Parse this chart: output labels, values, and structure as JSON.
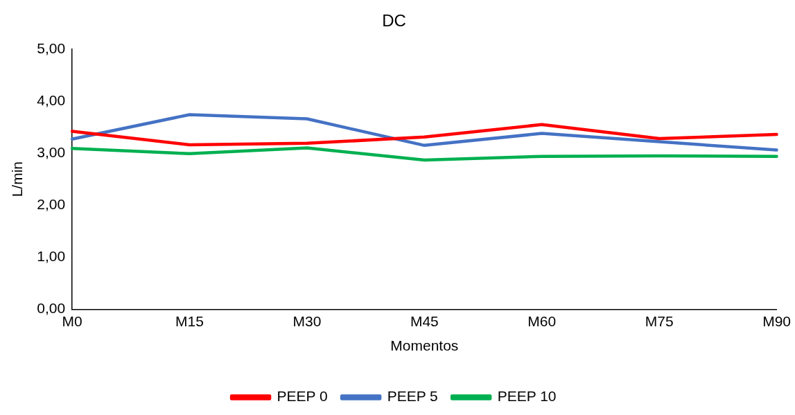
{
  "chart_data": {
    "type": "line",
    "title": "DC",
    "xlabel": "Momentos",
    "ylabel": "L/min",
    "categories": [
      "M0",
      "M15",
      "M30",
      "M45",
      "M60",
      "M75",
      "M90"
    ],
    "series": [
      {
        "name": "PEEP 0",
        "color": "#ff0000",
        "values": [
          3.42,
          3.16,
          3.19,
          3.31,
          3.55,
          3.28,
          3.36
        ]
      },
      {
        "name": "PEEP 5",
        "color": "#4472c4",
        "values": [
          3.27,
          3.74,
          3.66,
          3.15,
          3.38,
          3.22,
          3.06
        ]
      },
      {
        "name": "PEEP 10",
        "color": "#00b050",
        "values": [
          3.09,
          2.99,
          3.1,
          2.87,
          2.94,
          2.95,
          2.94
        ]
      }
    ],
    "ylim": [
      0,
      5
    ],
    "yticks": [
      {
        "value": 0,
        "label": "0,00"
      },
      {
        "value": 1,
        "label": "1,00"
      },
      {
        "value": 2,
        "label": "2,00"
      },
      {
        "value": 3,
        "label": "3,00"
      },
      {
        "value": 4,
        "label": "4,00"
      },
      {
        "value": 5,
        "label": "5,00"
      }
    ],
    "grid": false,
    "legend": "bottom",
    "marker": "none",
    "line_style": "solid"
  }
}
